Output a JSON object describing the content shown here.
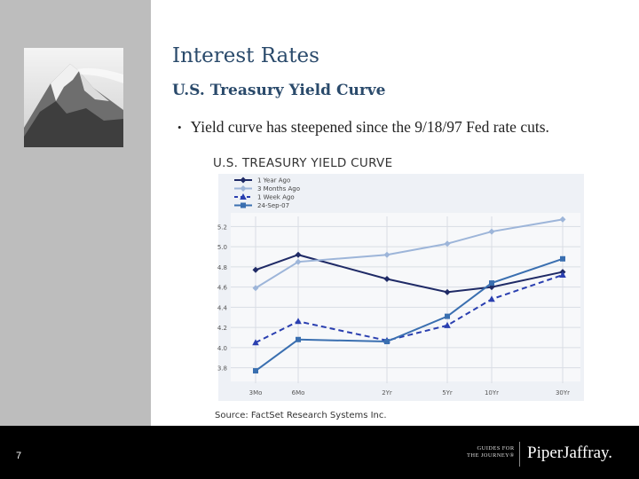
{
  "slide": {
    "title": "Interest Rates",
    "subtitle": "U.S. Treasury Yield Curve",
    "bullet": "Yield curve has steepened since the 9/18/97 Fed rate cuts.",
    "bullet_marker": "•",
    "page_number": "7"
  },
  "logo": {
    "guides_line1": "GUIDES FOR",
    "guides_line2": "THE JOURNEY®",
    "brand": "PiperJaffray."
  },
  "colors": {
    "sidebar": "#bdbdbd",
    "footer": "#000000",
    "heading": "#2a4a6b",
    "series_1_year": "#1f2a66",
    "series_3_months": "#9db5d9",
    "series_1_week": "#2a3fb0",
    "series_current": "#3a6fb0"
  },
  "chart_data": {
    "type": "line",
    "title": "U.S. TREASURY YIELD CURVE",
    "source": "Source: FactSet Research Systems Inc.",
    "categories": [
      "3Mo",
      "6Mo",
      "2Yr",
      "5Yr",
      "10Yr",
      "30Yr"
    ],
    "x": [
      0.25,
      0.5,
      2,
      5,
      10,
      30
    ],
    "yticks": [
      "3.8",
      "4.0",
      "4.2",
      "4.4",
      "4.6",
      "4.8",
      "5.0",
      "5.2"
    ],
    "ylim": [
      3.7,
      5.3
    ],
    "grid": true,
    "legend": "top-left",
    "series": [
      {
        "name": "1 Year Ago",
        "values": [
          4.77,
          4.92,
          4.68,
          4.55,
          4.6,
          4.75
        ],
        "marker": "diamond",
        "dash": false
      },
      {
        "name": "3 Months Ago",
        "values": [
          4.59,
          4.85,
          4.92,
          5.03,
          5.15,
          5.27
        ],
        "marker": "diamond",
        "dash": false
      },
      {
        "name": "1 Week Ago",
        "values": [
          4.05,
          4.26,
          4.07,
          4.22,
          4.48,
          4.72
        ],
        "marker": "triangle",
        "dash": true
      },
      {
        "name": "24-Sep-07",
        "values": [
          3.77,
          4.08,
          4.06,
          4.31,
          4.64,
          4.88
        ],
        "marker": "square",
        "dash": false
      }
    ]
  }
}
